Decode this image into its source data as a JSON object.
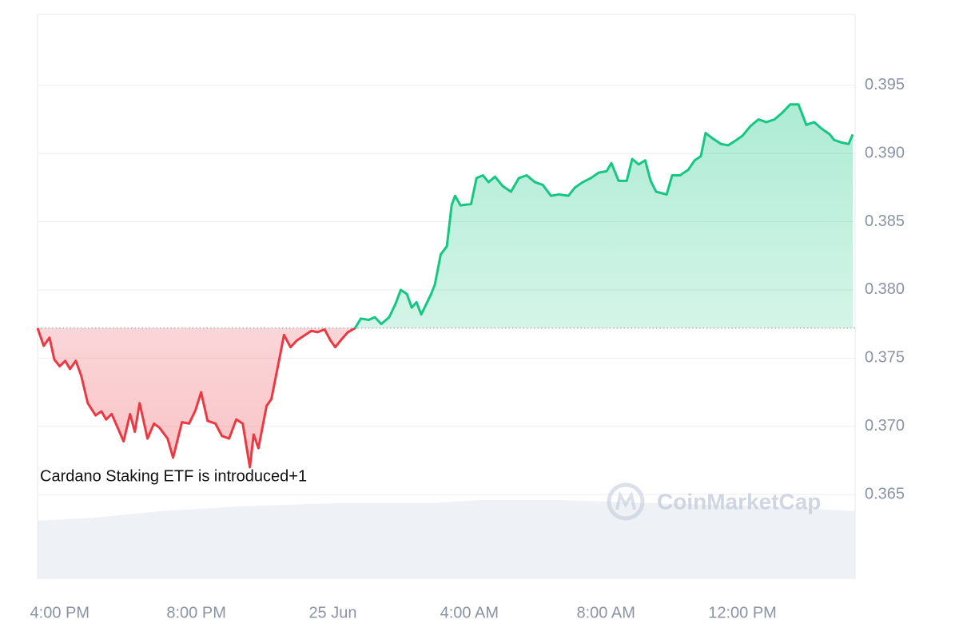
{
  "chart_data": {
    "type": "line",
    "annotation": "Cardano Staking ETF is introduced+1",
    "watermark": "CoinMarketCap",
    "baseline": 0.3772,
    "up_color": "#16c784",
    "down_color": "#ea3943",
    "grid": true,
    "xlim": [
      15.35,
      39.3
    ],
    "ylim": [
      0.3588,
      0.4002
    ],
    "xticks": [
      {
        "value": 16,
        "label": "4:00 PM"
      },
      {
        "value": 20,
        "label": "8:00 PM"
      },
      {
        "value": 24,
        "label": "25 Jun"
      },
      {
        "value": 28,
        "label": "4:00 AM"
      },
      {
        "value": 32,
        "label": "8:00 AM"
      },
      {
        "value": 36,
        "label": "12:00 PM"
      }
    ],
    "yticks": [
      0.395,
      {
        "value": 0.39,
        "label": "0.390"
      },
      0.385,
      {
        "value": 0.38,
        "label": "0.380"
      },
      0.375,
      {
        "value": 0.37,
        "label": "0.370"
      },
      0.365
    ],
    "x": [
      15.35,
      15.53,
      15.7,
      15.84,
      16.0,
      16.16,
      16.3,
      16.47,
      16.63,
      16.82,
      17.05,
      17.22,
      17.36,
      17.52,
      17.68,
      17.87,
      18.06,
      18.2,
      18.34,
      18.57,
      18.76,
      18.92,
      19.16,
      19.32,
      19.58,
      19.79,
      19.98,
      20.14,
      20.33,
      20.56,
      20.75,
      20.96,
      21.17,
      21.36,
      21.57,
      21.68,
      21.82,
      22.06,
      22.2,
      22.43,
      22.57,
      22.76,
      22.95,
      23.13,
      23.37,
      23.55,
      23.76,
      23.93,
      24.07,
      24.23,
      24.44,
      24.65,
      24.82,
      25.05,
      25.23,
      25.42,
      25.65,
      25.84,
      25.99,
      26.17,
      26.31,
      26.45,
      26.59,
      26.88,
      26.99,
      27.16,
      27.34,
      27.48,
      27.58,
      27.74,
      28.05,
      28.21,
      28.4,
      28.56,
      28.75,
      28.98,
      29.22,
      29.45,
      29.68,
      29.92,
      30.15,
      30.39,
      30.62,
      30.9,
      31.09,
      31.32,
      31.56,
      31.79,
      32.02,
      32.16,
      32.37,
      32.61,
      32.77,
      32.96,
      33.15,
      33.31,
      33.47,
      33.78,
      33.94,
      34.17,
      34.41,
      34.6,
      34.78,
      34.92,
      35.13,
      35.37,
      35.58,
      35.77,
      36.0,
      36.23,
      36.47,
      36.7,
      36.94,
      37.17,
      37.4,
      37.64,
      37.87,
      38.1,
      38.33,
      38.56,
      38.68,
      38.91,
      39.11,
      39.23
    ],
    "values": [
      0.3772,
      0.3759,
      0.3765,
      0.3749,
      0.3744,
      0.3748,
      0.3742,
      0.3748,
      0.3737,
      0.3717,
      0.3708,
      0.3711,
      0.3705,
      0.3709,
      0.37,
      0.3689,
      0.3709,
      0.3696,
      0.3717,
      0.3691,
      0.3702,
      0.3699,
      0.3691,
      0.3677,
      0.3703,
      0.3702,
      0.3712,
      0.3725,
      0.3704,
      0.3702,
      0.3693,
      0.3691,
      0.3705,
      0.3702,
      0.367,
      0.3694,
      0.3684,
      0.3715,
      0.372,
      0.3749,
      0.3767,
      0.3758,
      0.3763,
      0.3766,
      0.377,
      0.3769,
      0.3771,
      0.3763,
      0.3758,
      0.3763,
      0.3769,
      0.3772,
      0.3779,
      0.3778,
      0.378,
      0.3775,
      0.378,
      0.379,
      0.38,
      0.3797,
      0.3787,
      0.3791,
      0.3782,
      0.3797,
      0.3804,
      0.3826,
      0.3832,
      0.3862,
      0.3869,
      0.3862,
      0.3863,
      0.3882,
      0.3884,
      0.3879,
      0.3883,
      0.3876,
      0.3872,
      0.3882,
      0.3884,
      0.3879,
      0.3877,
      0.3869,
      0.387,
      0.3869,
      0.3875,
      0.3879,
      0.3882,
      0.3886,
      0.3887,
      0.3893,
      0.388,
      0.388,
      0.3896,
      0.3892,
      0.3895,
      0.388,
      0.3872,
      0.387,
      0.3884,
      0.3884,
      0.3888,
      0.3895,
      0.3898,
      0.3915,
      0.3911,
      0.3907,
      0.3906,
      0.3909,
      0.3913,
      0.392,
      0.3925,
      0.3923,
      0.3925,
      0.393,
      0.3936,
      0.3936,
      0.3921,
      0.3923,
      0.3918,
      0.3914,
      0.391,
      0.3908,
      0.3907,
      0.3914
    ]
  }
}
